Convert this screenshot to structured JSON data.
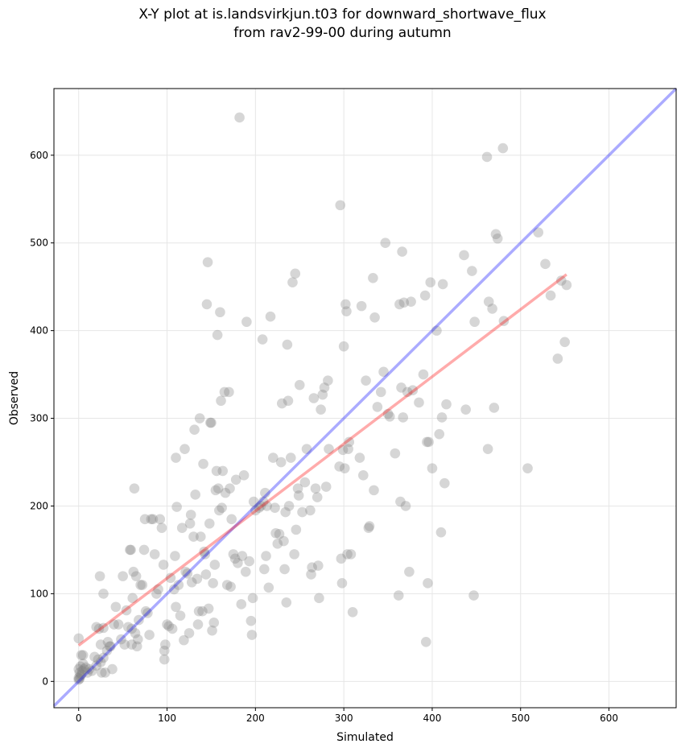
{
  "chart_data": {
    "type": "scatter",
    "title_line1": "X-Y plot at is.landsvirkjun.t03 for downward_shortwave_flux",
    "title_line2": "from rav2-99-00 during autumn",
    "xlabel": "Simulated",
    "ylabel": "Observed",
    "xlim": [
      -28,
      676
    ],
    "ylim": [
      -30,
      676
    ],
    "xticks": [
      0,
      100,
      200,
      300,
      400,
      500,
      600
    ],
    "yticks": [
      0,
      100,
      200,
      300,
      400,
      500,
      600
    ],
    "grid": true,
    "colors": {
      "points": "#808080",
      "one_to_one": "#0000ff",
      "regression": "#ff0000"
    },
    "one_to_one_line": {
      "x": [
        -28,
        676
      ],
      "y": [
        -28,
        676
      ]
    },
    "regression_line": {
      "x": [
        0,
        552
      ],
      "y": [
        41,
        464
      ]
    },
    "points": [
      [
        0,
        2
      ],
      [
        0,
        4
      ],
      [
        1,
        3
      ],
      [
        2,
        6
      ],
      [
        3,
        8
      ],
      [
        1,
        10
      ],
      [
        4,
        12
      ],
      [
        6,
        14
      ],
      [
        0,
        14
      ],
      [
        2,
        17
      ],
      [
        5,
        20
      ],
      [
        8,
        16
      ],
      [
        10,
        10
      ],
      [
        12,
        14
      ],
      [
        15,
        12
      ],
      [
        3,
        30
      ],
      [
        5,
        30
      ],
      [
        0,
        49
      ],
      [
        20,
        18
      ],
      [
        22,
        25
      ],
      [
        18,
        28
      ],
      [
        25,
        22
      ],
      [
        28,
        27
      ],
      [
        20,
        62
      ],
      [
        23,
        60
      ],
      [
        28,
        61
      ],
      [
        24,
        120
      ],
      [
        25,
        42
      ],
      [
        26,
        10
      ],
      [
        28,
        100
      ],
      [
        30,
        10
      ],
      [
        32,
        35
      ],
      [
        33,
        45
      ],
      [
        35,
        40
      ],
      [
        36,
        40
      ],
      [
        38,
        14
      ],
      [
        40,
        65
      ],
      [
        42,
        85
      ],
      [
        45,
        65
      ],
      [
        48,
        48
      ],
      [
        50,
        120
      ],
      [
        52,
        42
      ],
      [
        54,
        81
      ],
      [
        56,
        62
      ],
      [
        58,
        150
      ],
      [
        59,
        150
      ],
      [
        60,
        42
      ],
      [
        60,
        60
      ],
      [
        61,
        95
      ],
      [
        62,
        125
      ],
      [
        63,
        220
      ],
      [
        64,
        55
      ],
      [
        65,
        120
      ],
      [
        66,
        40
      ],
      [
        67,
        48
      ],
      [
        68,
        70
      ],
      [
        70,
        110
      ],
      [
        72,
        110
      ],
      [
        74,
        150
      ],
      [
        75,
        185
      ],
      [
        76,
        80
      ],
      [
        78,
        78
      ],
      [
        80,
        53
      ],
      [
        82,
        185
      ],
      [
        84,
        185
      ],
      [
        86,
        145
      ],
      [
        88,
        100
      ],
      [
        90,
        105
      ],
      [
        92,
        185
      ],
      [
        94,
        175
      ],
      [
        96,
        133
      ],
      [
        97,
        35
      ],
      [
        97,
        25
      ],
      [
        98,
        42
      ],
      [
        100,
        65
      ],
      [
        102,
        63
      ],
      [
        104,
        118
      ],
      [
        106,
        60
      ],
      [
        108,
        105
      ],
      [
        109,
        143
      ],
      [
        110,
        255
      ],
      [
        110,
        85
      ],
      [
        111,
        199
      ],
      [
        113,
        110
      ],
      [
        115,
        75
      ],
      [
        117,
        175
      ],
      [
        119,
        47
      ],
      [
        120,
        265
      ],
      [
        121,
        125
      ],
      [
        123,
        123
      ],
      [
        125,
        55
      ],
      [
        126,
        180
      ],
      [
        127,
        190
      ],
      [
        128,
        113
      ],
      [
        130,
        165
      ],
      [
        131,
        287
      ],
      [
        132,
        213
      ],
      [
        134,
        117
      ],
      [
        135,
        65
      ],
      [
        136,
        80
      ],
      [
        137,
        300
      ],
      [
        138,
        165
      ],
      [
        140,
        80
      ],
      [
        141,
        248
      ],
      [
        142,
        148
      ],
      [
        143,
        145
      ],
      [
        144,
        122
      ],
      [
        145,
        430
      ],
      [
        146,
        478
      ],
      [
        147,
        83
      ],
      [
        148,
        180
      ],
      [
        149,
        295
      ],
      [
        150,
        295
      ],
      [
        151,
        58
      ],
      [
        152,
        112
      ],
      [
        153,
        67
      ],
      [
        154,
        133
      ],
      [
        155,
        218
      ],
      [
        156,
        240
      ],
      [
        157,
        395
      ],
      [
        158,
        220
      ],
      [
        159,
        195
      ],
      [
        160,
        421
      ],
      [
        161,
        320
      ],
      [
        162,
        198
      ],
      [
        163,
        240
      ],
      [
        165,
        330
      ],
      [
        166,
        215
      ],
      [
        168,
        110
      ],
      [
        170,
        330
      ],
      [
        171,
        220
      ],
      [
        172,
        108
      ],
      [
        173,
        185
      ],
      [
        175,
        145
      ],
      [
        177,
        140
      ],
      [
        178,
        230
      ],
      [
        180,
        135
      ],
      [
        182,
        643
      ],
      [
        184,
        88
      ],
      [
        185,
        143
      ],
      [
        187,
        235
      ],
      [
        189,
        125
      ],
      [
        190,
        410
      ],
      [
        193,
        137
      ],
      [
        195,
        69
      ],
      [
        196,
        53
      ],
      [
        197,
        95
      ],
      [
        198,
        205
      ],
      [
        200,
        195
      ],
      [
        204,
        198
      ],
      [
        206,
        200
      ],
      [
        208,
        390
      ],
      [
        209,
        205
      ],
      [
        210,
        128
      ],
      [
        211,
        215
      ],
      [
        212,
        143
      ],
      [
        213,
        200
      ],
      [
        215,
        107
      ],
      [
        217,
        416
      ],
      [
        220,
        255
      ],
      [
        222,
        198
      ],
      [
        223,
        169
      ],
      [
        225,
        157
      ],
      [
        227,
        168
      ],
      [
        229,
        250
      ],
      [
        230,
        317
      ],
      [
        232,
        160
      ],
      [
        233,
        128
      ],
      [
        234,
        193
      ],
      [
        235,
        90
      ],
      [
        236,
        384
      ],
      [
        237,
        320
      ],
      [
        238,
        200
      ],
      [
        240,
        255
      ],
      [
        242,
        455
      ],
      [
        244,
        145
      ],
      [
        245,
        465
      ],
      [
        246,
        173
      ],
      [
        248,
        220
      ],
      [
        249,
        212
      ],
      [
        250,
        338
      ],
      [
        253,
        193
      ],
      [
        256,
        227
      ],
      [
        258,
        265
      ],
      [
        262,
        195
      ],
      [
        263,
        122
      ],
      [
        264,
        130
      ],
      [
        266,
        323
      ],
      [
        268,
        220
      ],
      [
        270,
        210
      ],
      [
        271,
        132
      ],
      [
        272,
        95
      ],
      [
        274,
        310
      ],
      [
        276,
        327
      ],
      [
        278,
        335
      ],
      [
        280,
        222
      ],
      [
        282,
        343
      ],
      [
        283,
        265
      ],
      [
        295,
        245
      ],
      [
        296,
        543
      ],
      [
        297,
        140
      ],
      [
        298,
        112
      ],
      [
        299,
        264
      ],
      [
        300,
        382
      ],
      [
        301,
        243
      ],
      [
        302,
        430
      ],
      [
        303,
        422
      ],
      [
        304,
        145
      ],
      [
        305,
        265
      ],
      [
        306,
        273
      ],
      [
        308,
        145
      ],
      [
        310,
        79
      ],
      [
        318,
        255
      ],
      [
        320,
        428
      ],
      [
        322,
        235
      ],
      [
        325,
        343
      ],
      [
        328,
        175
      ],
      [
        329,
        177
      ],
      [
        333,
        460
      ],
      [
        334,
        218
      ],
      [
        335,
        415
      ],
      [
        338,
        313
      ],
      [
        342,
        330
      ],
      [
        345,
        353
      ],
      [
        347,
        500
      ],
      [
        350,
        305
      ],
      [
        352,
        302
      ],
      [
        358,
        260
      ],
      [
        362,
        98
      ],
      [
        363,
        430
      ],
      [
        364,
        205
      ],
      [
        365,
        335
      ],
      [
        366,
        490
      ],
      [
        367,
        301
      ],
      [
        368,
        432
      ],
      [
        370,
        200
      ],
      [
        372,
        330
      ],
      [
        374,
        125
      ],
      [
        376,
        433
      ],
      [
        378,
        332
      ],
      [
        385,
        318
      ],
      [
        390,
        350
      ],
      [
        392,
        440
      ],
      [
        393,
        45
      ],
      [
        394,
        273
      ],
      [
        395,
        112
      ],
      [
        396,
        273
      ],
      [
        398,
        455
      ],
      [
        400,
        243
      ],
      [
        405,
        400
      ],
      [
        408,
        282
      ],
      [
        410,
        170
      ],
      [
        411,
        301
      ],
      [
        412,
        453
      ],
      [
        414,
        226
      ],
      [
        416,
        316
      ],
      [
        436,
        486
      ],
      [
        438,
        310
      ],
      [
        445,
        468
      ],
      [
        447,
        98
      ],
      [
        448,
        410
      ],
      [
        462,
        598
      ],
      [
        463,
        265
      ],
      [
        464,
        433
      ],
      [
        468,
        425
      ],
      [
        470,
        312
      ],
      [
        472,
        510
      ],
      [
        474,
        505
      ],
      [
        480,
        608
      ],
      [
        481,
        411
      ],
      [
        508,
        243
      ],
      [
        520,
        512
      ],
      [
        528,
        476
      ],
      [
        534,
        440
      ],
      [
        542,
        368
      ],
      [
        546,
        457
      ],
      [
        550,
        387
      ],
      [
        552,
        452
      ]
    ]
  }
}
